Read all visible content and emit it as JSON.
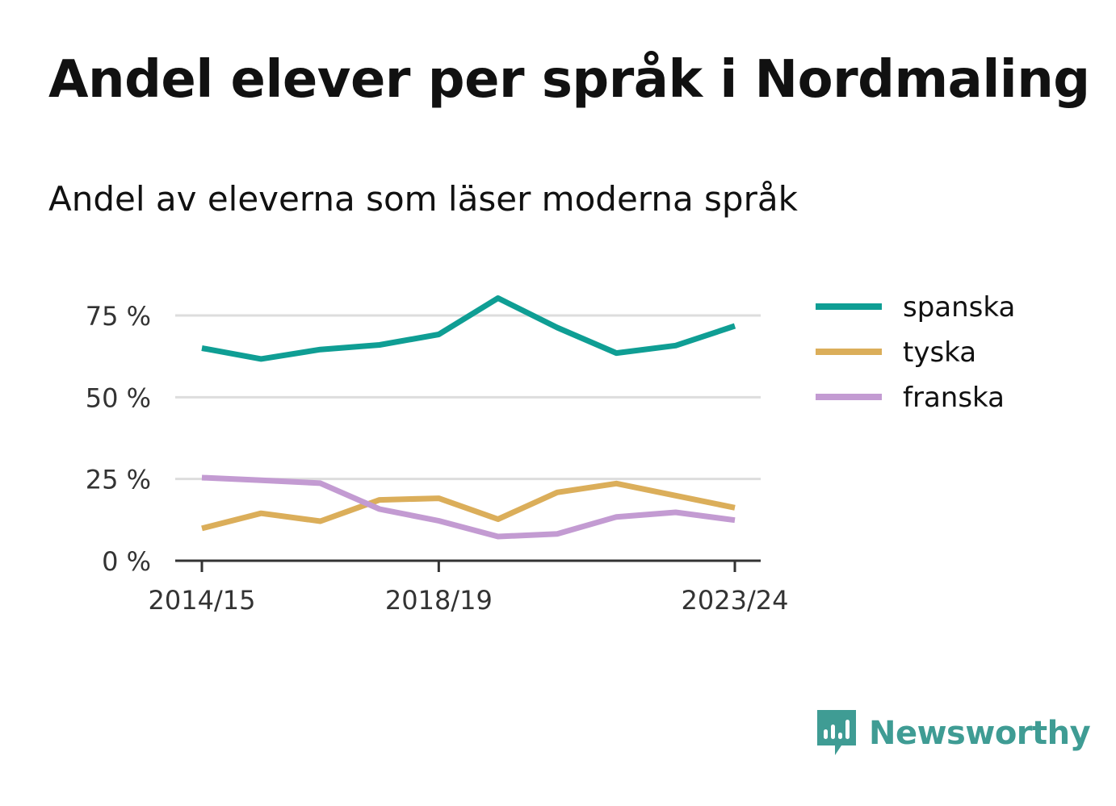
{
  "title": "Andel elever per språk i Nordmaling",
  "subtitle": "Andel av eleverna som läser moderna språk",
  "brand": {
    "name": "Newsworthy",
    "color": "#3f9c94",
    "icon": "newsworthy-logo-icon"
  },
  "colors": {
    "grid": "#dddddd",
    "axis": "#333333"
  },
  "chart_data": {
    "type": "line",
    "x": [
      "2014/15",
      "2015/16",
      "2016/17",
      "2017/18",
      "2018/19",
      "2019/20",
      "2020/21",
      "2021/22",
      "2022/23",
      "2023/24"
    ],
    "x_tick_labels": [
      "2014/15",
      "2018/19",
      "2023/24"
    ],
    "y_ticks": [
      0,
      25,
      50,
      75
    ],
    "y_tick_labels": [
      "0 %",
      "25 %",
      "50 %",
      "75 %"
    ],
    "ylim": [
      0,
      80
    ],
    "grid": true,
    "legend_position": "right",
    "series": [
      {
        "name": "spanska",
        "color": "#0f9e94",
        "values": [
          65,
          61.7,
          64.6,
          66,
          69.2,
          80.3,
          71.3,
          63.5,
          65.8,
          71.8
        ]
      },
      {
        "name": "tyska",
        "color": "#dbae5a",
        "values": [
          9.9,
          14.5,
          12.1,
          18.6,
          19.1,
          12.7,
          20.9,
          23.6,
          19.9,
          16.2
        ]
      },
      {
        "name": "franska",
        "color": "#c39bd2",
        "values": [
          25.4,
          24.6,
          23.7,
          15.8,
          12.2,
          7.4,
          8.2,
          13.4,
          14.8,
          12.4
        ]
      }
    ]
  }
}
